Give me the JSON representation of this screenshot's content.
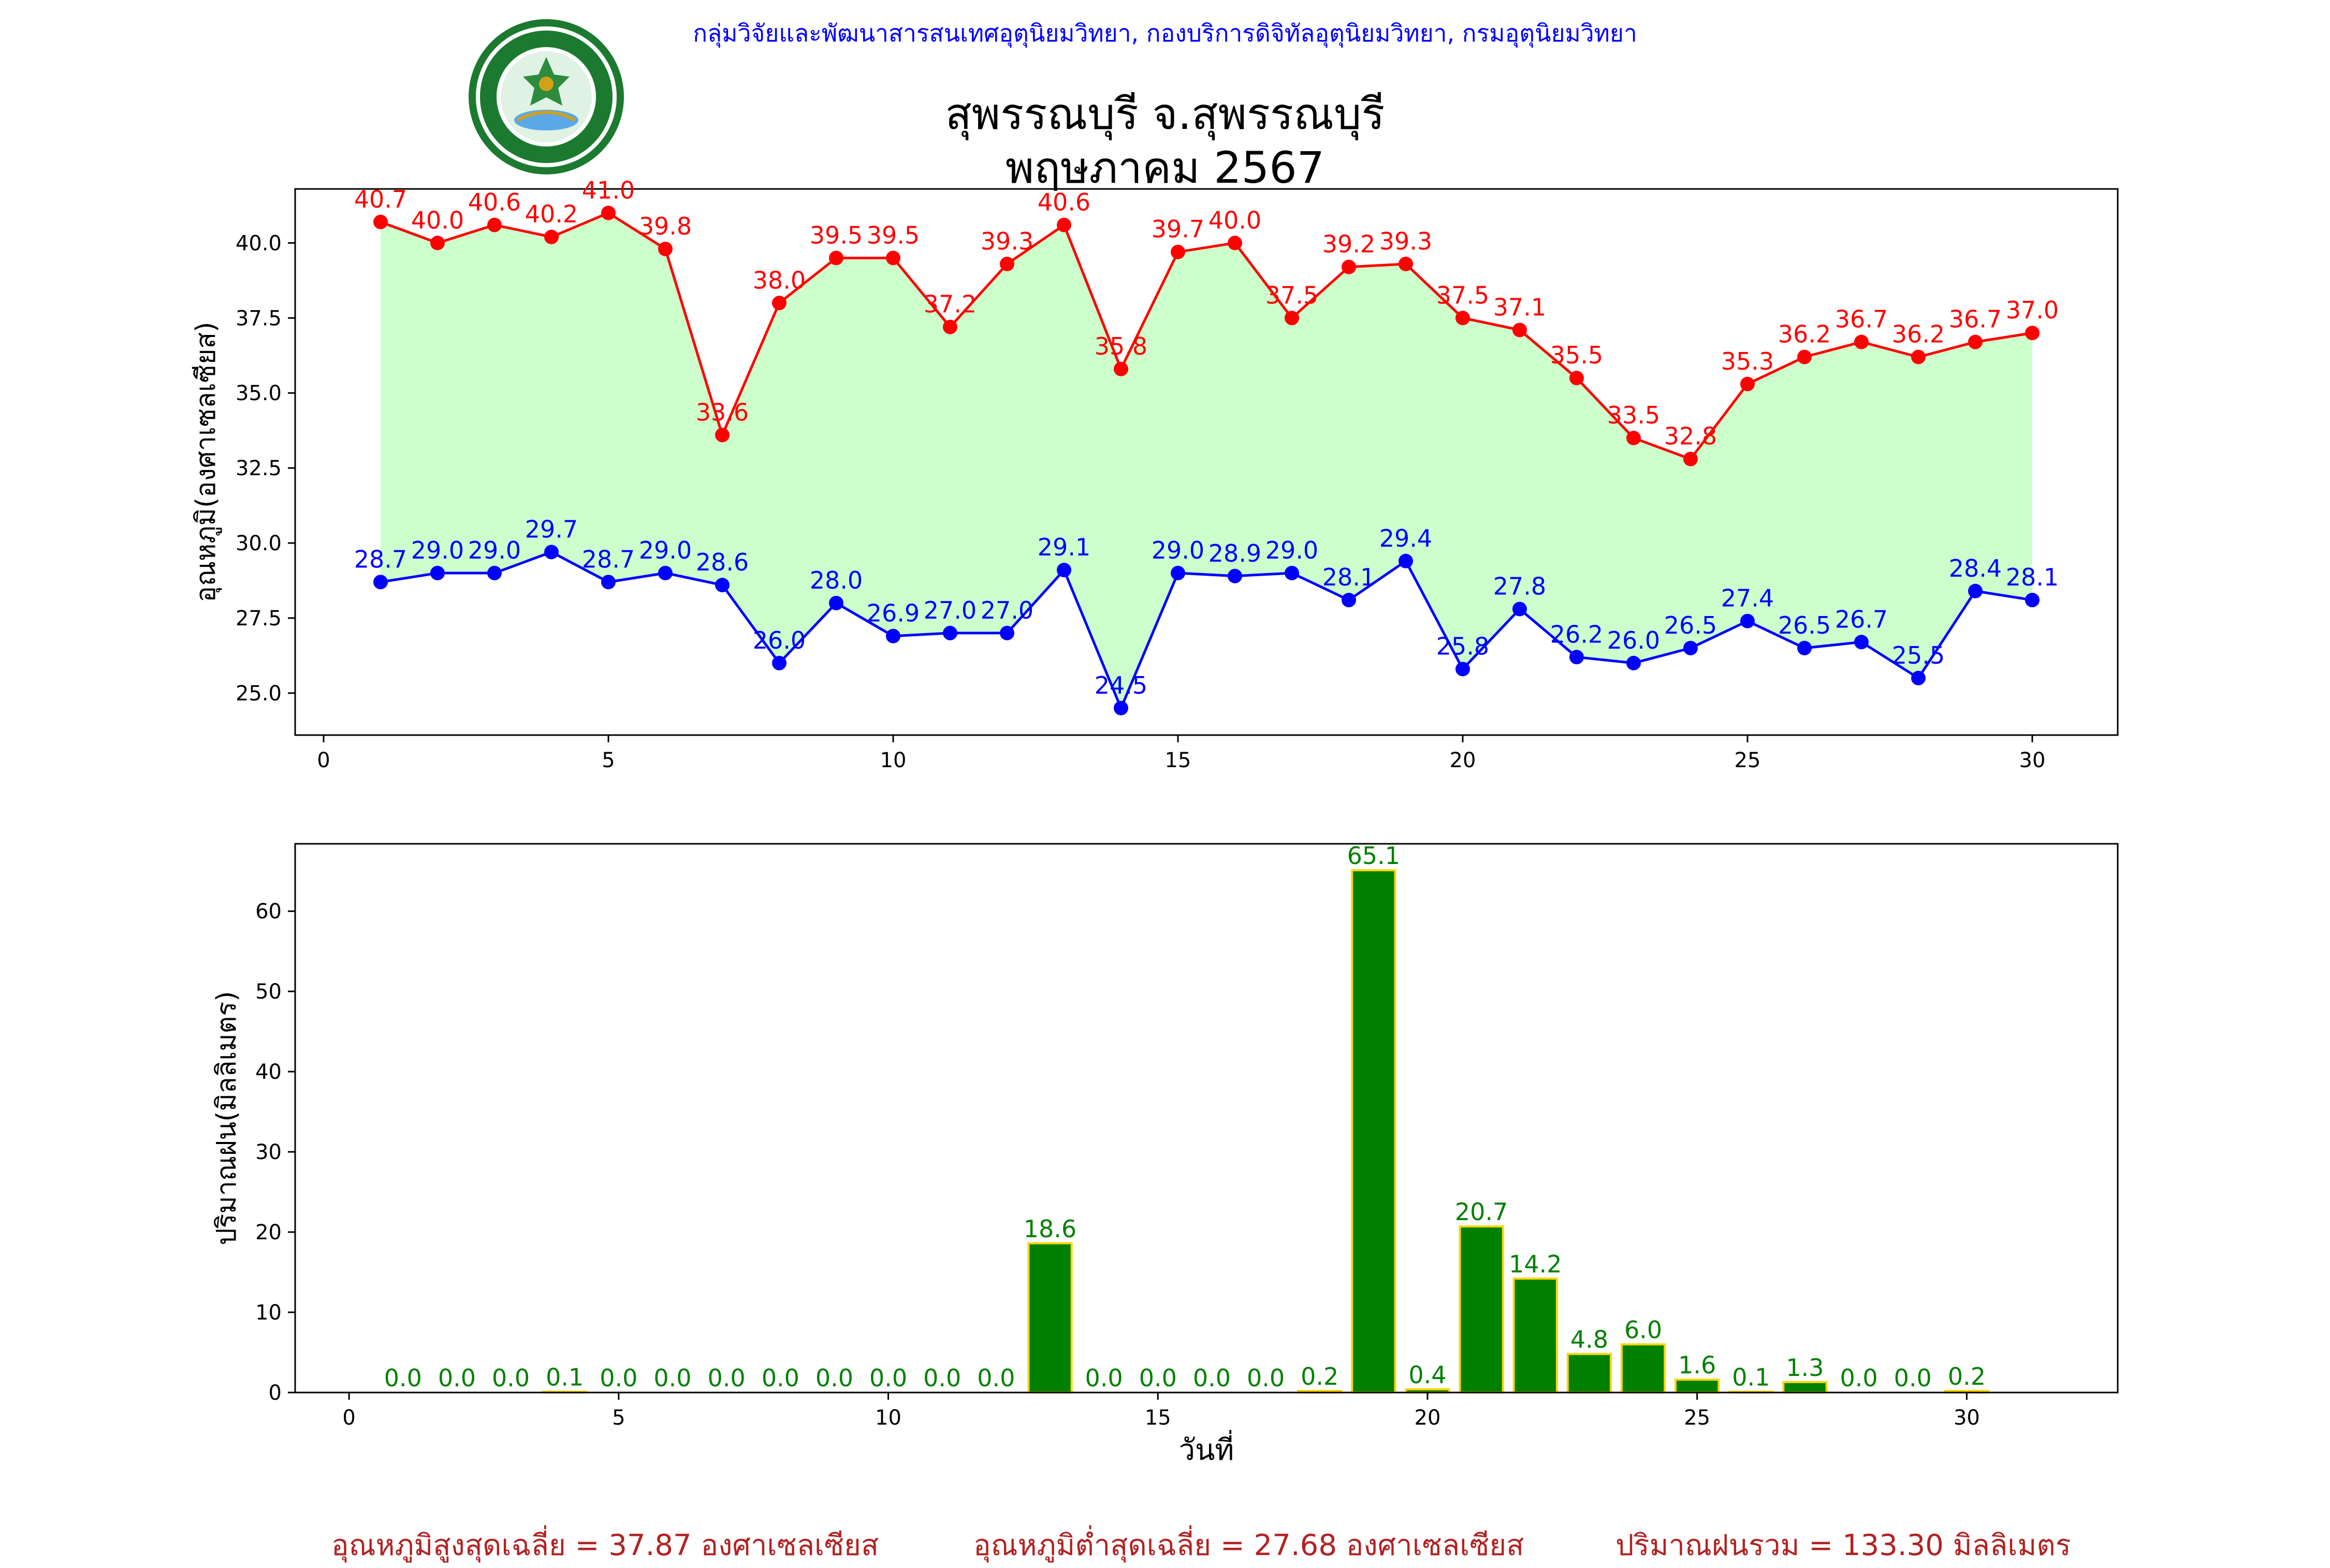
{
  "header": {
    "credit": "กลุ่มวิจัยและพัฒนาสารสนเทศอุตุนิยมวิทยา, กองบริการดิจิทัลอุตุนิยมวิทยา, กรมอุตุนิยมวิทยา",
    "title_line1": "สุพรรณบุรี จ.สุพรรณบุรี",
    "title_line2": "พฤษภาคม 2567",
    "logo_icon": "meteorological-department-seal-icon"
  },
  "summary": {
    "avg_max": "อุณหภูมิสูงสุดเฉลี่ย = 37.87 องศาเซลเซียส",
    "avg_min": "อุณหภูมิต่ำสุดเฉลี่ย = 27.68 องศาเซลเซียส",
    "total_rain": "ปริมาณฝนรวม = 133.30 มิลลิเมตร"
  },
  "colors": {
    "max_line": "#ff0000",
    "min_line": "#0000ff",
    "fill": "#ccffcc",
    "rain_bar": "#008000",
    "rain_edge": "#ffd700",
    "rain_label": "#008000",
    "summary": "#b22222"
  },
  "chart_data": [
    {
      "type": "line",
      "ylabel": "อุณหภูมิ(องศาเซลเซียส)",
      "xlim": [
        -0.5,
        31.5
      ],
      "ylim": [
        23.6,
        41.8
      ],
      "xticks": [
        0,
        5,
        10,
        15,
        20,
        25,
        30
      ],
      "yticks": [
        25.0,
        27.5,
        30.0,
        32.5,
        35.0,
        37.5,
        40.0
      ],
      "grid": false,
      "fill_between": true,
      "x": [
        1,
        2,
        3,
        4,
        5,
        6,
        7,
        8,
        9,
        10,
        11,
        12,
        13,
        14,
        15,
        16,
        17,
        18,
        19,
        20,
        21,
        22,
        23,
        24,
        25,
        26,
        27,
        28,
        29,
        30
      ],
      "series": [
        {
          "values": [
            40.7,
            40.0,
            40.6,
            40.2,
            41.0,
            39.8,
            33.6,
            38.0,
            39.5,
            39.5,
            37.2,
            39.3,
            40.6,
            35.8,
            39.7,
            40.0,
            37.5,
            39.2,
            39.3,
            37.5,
            37.1,
            35.5,
            33.5,
            32.8,
            35.3,
            36.2,
            36.7,
            36.2,
            36.7,
            37.0
          ]
        },
        {
          "values": [
            28.7,
            29.0,
            29.0,
            29.7,
            28.7,
            29.0,
            28.6,
            26.0,
            28.0,
            26.9,
            27.0,
            27.0,
            29.1,
            24.5,
            29.0,
            28.9,
            29.0,
            28.1,
            29.4,
            25.8,
            27.8,
            26.2,
            26.0,
            26.5,
            27.4,
            26.5,
            26.7,
            25.5,
            28.4,
            28.1
          ]
        }
      ]
    },
    {
      "type": "bar",
      "xlabel": "วันที่",
      "ylabel": "ปริมาณฝน(มิลลิเมตร)",
      "xlim": [
        -1,
        32.8
      ],
      "ylim": [
        0,
        68.4
      ],
      "xticks": [
        0,
        5,
        10,
        15,
        20,
        25,
        30
      ],
      "yticks": [
        0,
        10,
        20,
        30,
        40,
        50,
        60
      ],
      "grid": false,
      "x": [
        1,
        2,
        3,
        4,
        5,
        6,
        7,
        8,
        9,
        10,
        11,
        12,
        13,
        14,
        15,
        16,
        17,
        18,
        19,
        20,
        21,
        22,
        23,
        24,
        25,
        26,
        27,
        28,
        29,
        30
      ],
      "values": [
        0.0,
        0.0,
        0.0,
        0.1,
        0.0,
        0.0,
        0.0,
        0.0,
        0.0,
        0.0,
        0.0,
        0.0,
        18.6,
        0.0,
        0.0,
        0.0,
        0.0,
        0.2,
        65.1,
        0.4,
        20.7,
        14.2,
        4.8,
        6.0,
        1.6,
        0.1,
        1.3,
        0.0,
        0.0,
        0.2
      ]
    }
  ]
}
